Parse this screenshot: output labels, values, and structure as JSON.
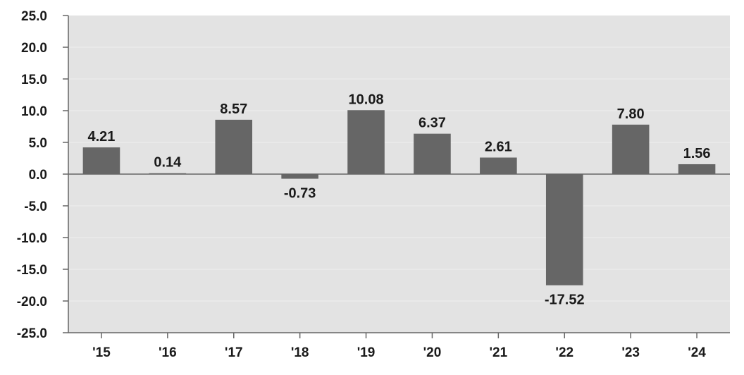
{
  "chart_data": {
    "type": "bar",
    "categories": [
      "'15",
      "'16",
      "'17",
      "'18",
      "'19",
      "'20",
      "'21",
      "'22",
      "'23",
      "'24"
    ],
    "values": [
      4.21,
      0.14,
      8.57,
      -0.73,
      10.08,
      6.37,
      2.61,
      -17.52,
      7.8,
      1.56
    ],
    "data_labels": [
      "4.21",
      "0.14",
      "8.57",
      "-0.73",
      "10.08",
      "6.37",
      "2.61",
      "-17.52",
      "7.80",
      "1.56"
    ],
    "yticks": [
      "25.0",
      "20.0",
      "15.0",
      "10.0",
      "5.0",
      "0.0",
      "-5.0",
      "-10.0",
      "-15.0",
      "-20.0",
      "-25.0"
    ],
    "ylim": [
      -25,
      25
    ],
    "grid": true,
    "colors": {
      "bar": "#666666",
      "plot_background": "#e3e3e3",
      "gridline": "#efefef",
      "axis": "#666666",
      "zero_line": "#666666"
    }
  }
}
